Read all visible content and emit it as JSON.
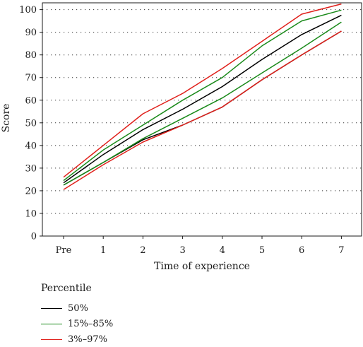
{
  "chart_data": {
    "type": "line",
    "categories": [
      "Pre",
      "1",
      "2",
      "3",
      "4",
      "5",
      "6",
      "7"
    ],
    "xlabel": "Time of experience",
    "ylabel": "Score",
    "ylim": [
      0,
      100
    ],
    "yticks": [
      0,
      10,
      20,
      30,
      40,
      50,
      60,
      70,
      80,
      90,
      100
    ],
    "grid": "dotted horizontal",
    "legend_title": "Percentile",
    "legend_position": "bottom-left",
    "series": [
      {
        "name": "50%",
        "color": "#000000",
        "values": [
          23.5,
          36,
          47,
          56,
          66,
          78,
          89,
          97.5
        ]
      },
      {
        "name": "50%",
        "color": "#000000",
        "values": [
          22.5,
          32.5,
          42.5,
          49,
          57,
          69,
          80,
          90.5
        ],
        "legend": false
      },
      {
        "name": "15%–85%",
        "color": "#1a8a1a",
        "values": [
          24.5,
          38,
          49,
          60,
          70,
          84,
          95,
          99.8
        ]
      },
      {
        "name": "15%–85%",
        "color": "#1a8a1a",
        "values": [
          22.5,
          32.5,
          43,
          52,
          61,
          72,
          83,
          94.5
        ],
        "legend": false
      },
      {
        "name": "3%–97%",
        "color": "#e0201b",
        "values": [
          26,
          40,
          54,
          63,
          74,
          86,
          98,
          102.5
        ]
      },
      {
        "name": "3%–97%",
        "color": "#e0201b",
        "values": [
          20.5,
          31.5,
          41.5,
          49,
          57,
          69,
          80,
          90.5
        ],
        "legend": false
      }
    ]
  }
}
